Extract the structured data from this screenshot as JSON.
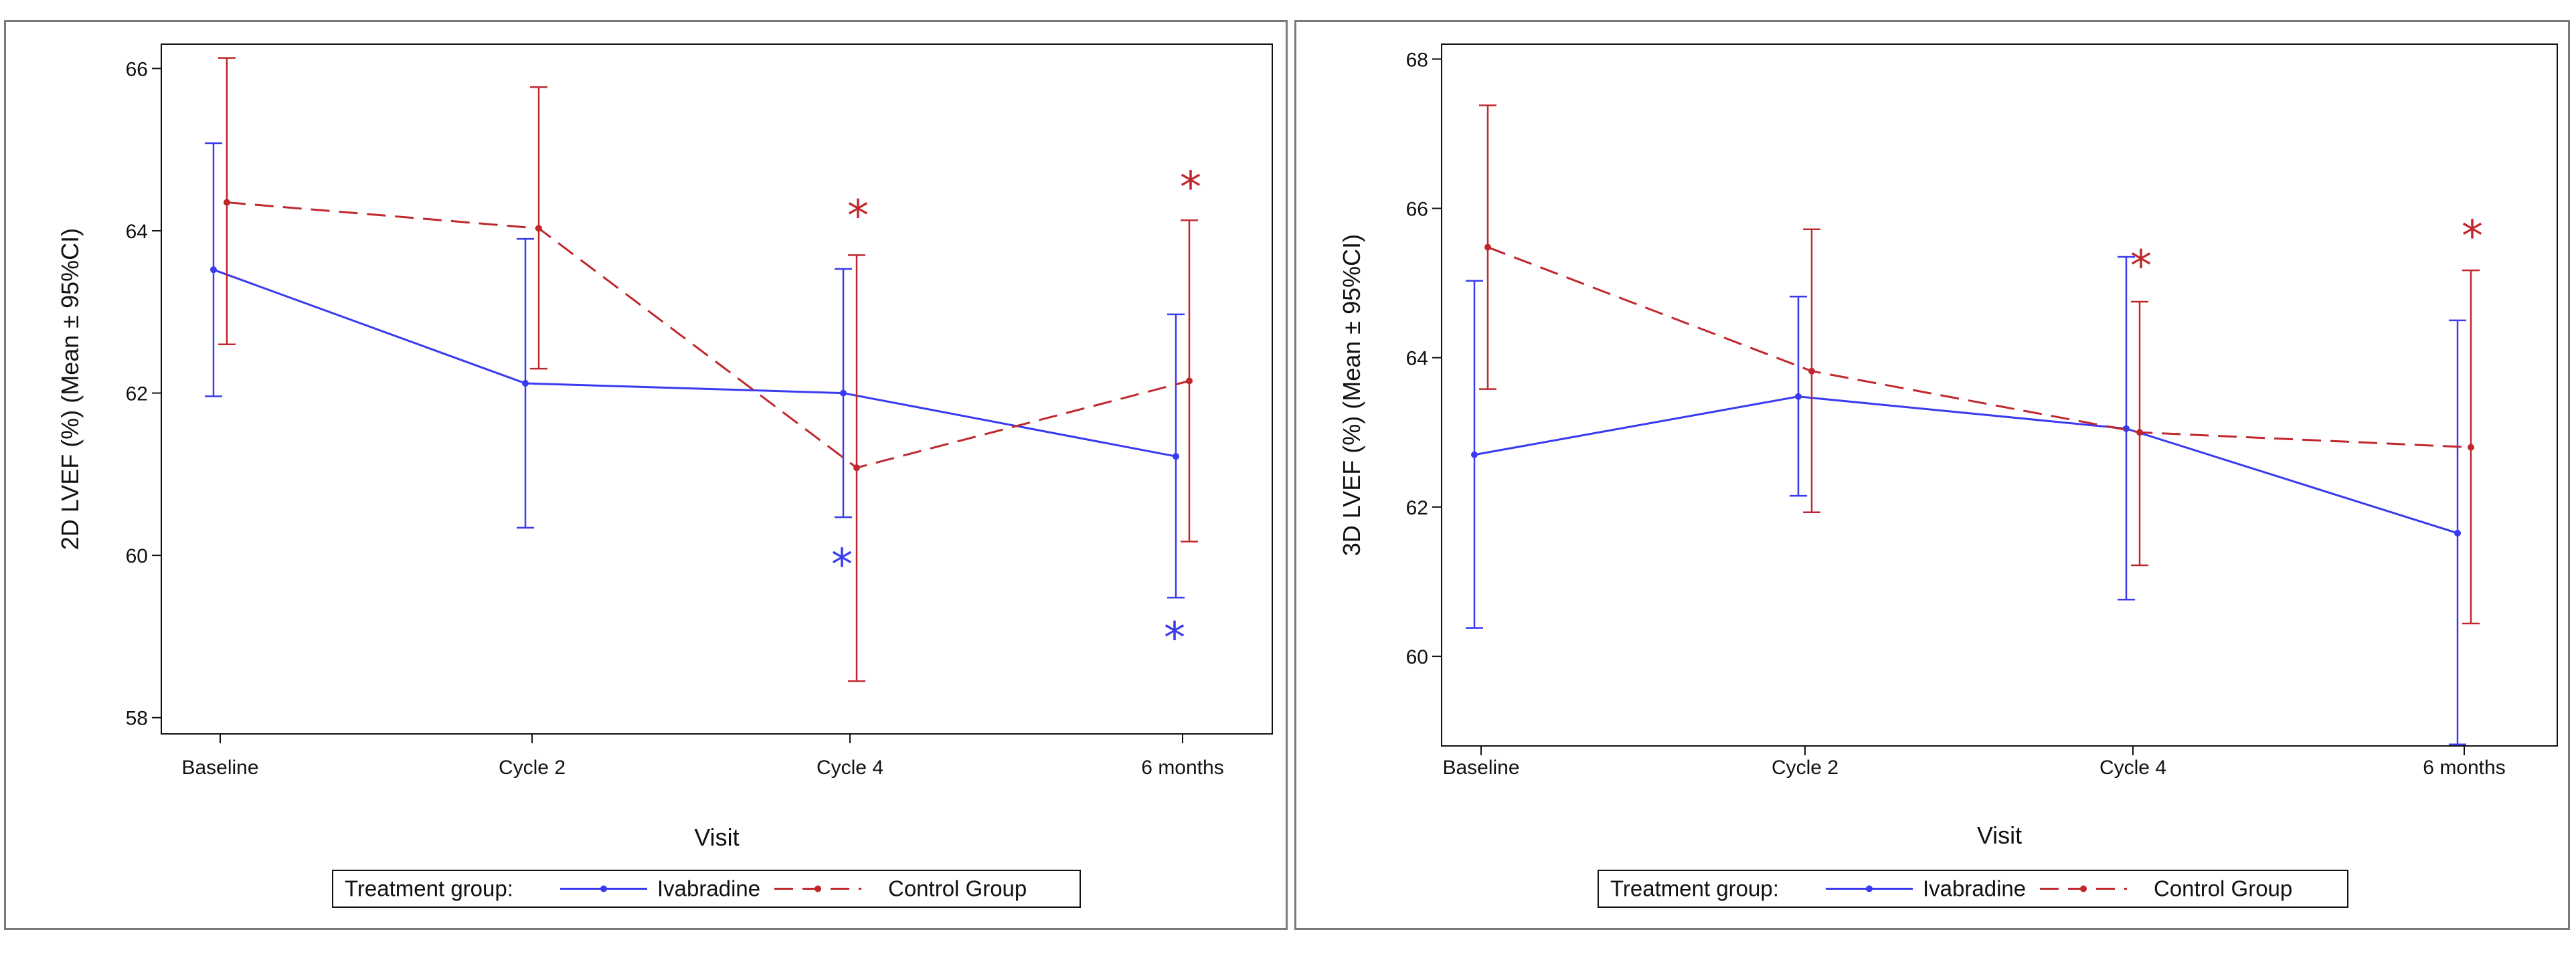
{
  "chart_data": [
    {
      "type": "line",
      "ylabel": "2D LVEF (%) (Mean ± 95%CI)",
      "xlabel": "Visit",
      "categories": [
        "Baseline",
        "Cycle 2",
        "Cycle 4",
        "6 months"
      ],
      "ylim": [
        57.8,
        66.3
      ],
      "yticks": [
        58,
        60,
        62,
        64,
        66
      ],
      "ytick_labels": [
        "58",
        "60",
        "62",
        "64",
        "66"
      ],
      "series": [
        {
          "name": "Ivabradine",
          "color": "#3a3af0",
          "dash": "solid",
          "values": [
            63.52,
            62.12,
            62.0,
            61.22
          ],
          "ci_low": [
            61.96,
            60.34,
            60.47,
            59.48
          ],
          "ci_high": [
            65.08,
            63.9,
            63.53,
            62.97
          ],
          "annotations": [
            {
              "index": 2,
              "text": "*",
              "at": 59.95
            },
            {
              "index": 3,
              "text": "*",
              "at": 59.05
            }
          ]
        },
        {
          "name": "Control Group",
          "color": "#c0282d",
          "dash": "dashed",
          "values": [
            64.35,
            64.03,
            61.08,
            62.15
          ],
          "ci_low": [
            62.6,
            62.3,
            58.45,
            60.17
          ],
          "ci_high": [
            66.13,
            65.77,
            63.7,
            64.13
          ],
          "annotations": [
            {
              "index": 2,
              "text": "*",
              "at": 64.25
            },
            {
              "index": 3,
              "text": "*",
              "at": 64.6
            }
          ]
        }
      ],
      "legend": {
        "title": "Treatment group:",
        "position": "bottom"
      }
    },
    {
      "type": "line",
      "ylabel": "3D LVEF (%) (Mean ± 95%CI)",
      "xlabel": "Visit",
      "categories": [
        "Baseline",
        "Cycle 2",
        "Cycle 4",
        "6 months"
      ],
      "ylim": [
        58.8,
        68.2
      ],
      "yticks": [
        60,
        62,
        64,
        66,
        68
      ],
      "ytick_labels": [
        "60",
        "62",
        "64",
        "66",
        "68"
      ],
      "series": [
        {
          "name": "Ivabradine",
          "color": "#3a3af0",
          "dash": "solid",
          "values": [
            62.7,
            63.48,
            63.05,
            61.65
          ],
          "ci_low": [
            60.38,
            62.15,
            60.76,
            58.82
          ],
          "ci_high": [
            65.03,
            64.82,
            65.35,
            64.5
          ],
          "annotations": []
        },
        {
          "name": "Control Group",
          "color": "#c0282d",
          "dash": "dashed",
          "values": [
            65.48,
            63.82,
            63.0,
            62.8
          ],
          "ci_low": [
            63.58,
            61.93,
            61.22,
            60.44
          ],
          "ci_high": [
            67.38,
            65.72,
            64.75,
            65.17
          ],
          "annotations": [
            {
              "index": 2,
              "text": "*",
              "at": 65.3
            },
            {
              "index": 3,
              "text": "*",
              "at": 65.7
            }
          ]
        }
      ],
      "legend": {
        "title": "Treatment group:",
        "position": "bottom"
      }
    }
  ]
}
